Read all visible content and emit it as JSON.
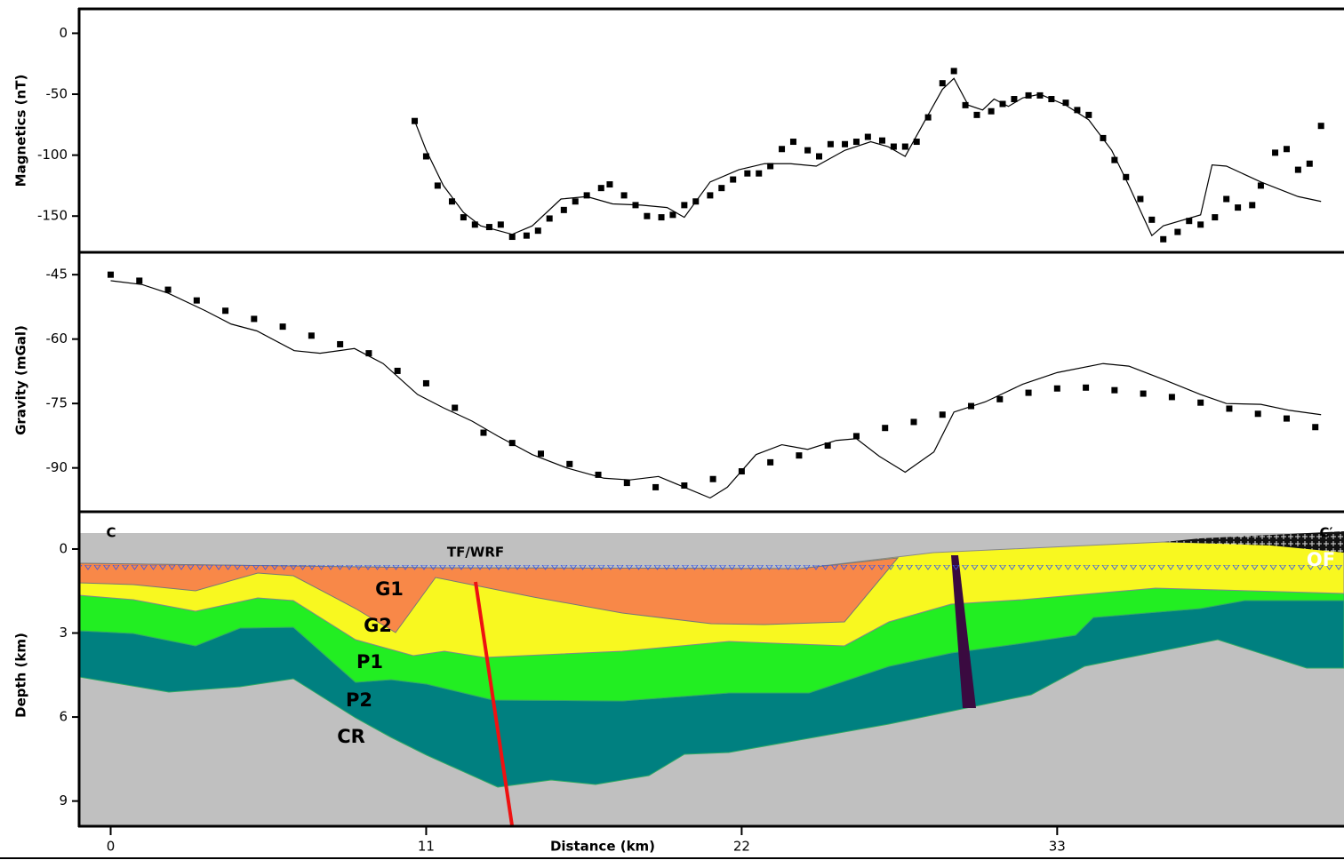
{
  "chart_data": [
    {
      "type": "line",
      "ylabel": "Magnetics (nT)",
      "xlim": [
        -1.1,
        43
      ],
      "ylim": [
        -179,
        20
      ],
      "yticks": [
        0,
        -50,
        -100,
        -150
      ],
      "series": [
        {
          "style": "markers",
          "color": "#000000",
          "x": [
            10.6,
            11.0,
            11.4,
            11.9,
            12.3,
            12.7,
            13.2,
            13.6,
            14.0,
            14.5,
            14.9,
            15.3,
            15.8,
            16.2,
            16.6,
            17.1,
            17.4,
            17.9,
            18.3,
            18.7,
            19.2,
            19.6,
            20.0,
            20.4,
            20.9,
            21.3,
            21.7,
            22.2,
            22.6,
            23.0,
            23.4,
            23.8,
            24.3,
            24.7,
            25.1,
            25.6,
            26.0,
            26.4,
            26.9,
            27.3,
            27.7,
            28.1,
            28.5,
            29.0,
            29.4,
            29.8,
            30.2,
            30.7,
            31.1,
            31.5,
            32.0,
            32.4,
            32.8,
            33.3,
            33.7,
            34.1,
            34.6,
            35.0,
            35.4,
            35.9,
            36.3,
            36.7,
            37.2,
            37.6,
            38.0,
            38.5,
            38.9,
            39.3,
            39.8,
            40.1,
            40.6,
            41.0,
            41.4,
            41.8,
            42.2
          ],
          "values": [
            -72,
            -101,
            -125,
            -138,
            -151,
            -157,
            -159,
            -157,
            -167,
            -166,
            -162,
            -152,
            -145,
            -138,
            -133,
            -127,
            -124,
            -133,
            -141,
            -150,
            -151,
            -149,
            -141,
            -138,
            -133,
            -127,
            -120,
            -115,
            -115,
            -109,
            -95,
            -89,
            -96,
            -101,
            -91,
            -91,
            -89,
            -85,
            -88,
            -93,
            -93,
            -89,
            -69,
            -41,
            -31,
            -59,
            -67,
            -64,
            -58,
            -54,
            -51,
            -51,
            -54,
            -57,
            -63,
            -67,
            -86,
            -104,
            -118,
            -136,
            -153,
            -169,
            -163,
            -154,
            -157,
            -151,
            -136,
            -143,
            -141,
            -125,
            -98,
            -95,
            -112,
            -107,
            -76
          ]
        },
        {
          "style": "line",
          "color": "#000000",
          "x": [
            10.6,
            11.0,
            11.6,
            12.3,
            12.9,
            14.0,
            14.7,
            15.7,
            16.6,
            17.5,
            18.5,
            19.4,
            20.0,
            20.9,
            21.9,
            22.8,
            23.7,
            24.6,
            25.6,
            26.5,
            27.1,
            27.7,
            28.5,
            29.0,
            29.4,
            29.9,
            30.4,
            30.8,
            31.3,
            31.8,
            32.4,
            33.3,
            34.1,
            34.9,
            35.5,
            36.3,
            36.7,
            38.0,
            38.4,
            38.9,
            40.1,
            41.4,
            42.2
          ],
          "values": [
            -72,
            -96,
            -125,
            -147,
            -158,
            -165,
            -158,
            -136,
            -134,
            -140,
            -141,
            -143,
            -151,
            -122,
            -112,
            -107,
            -107,
            -109,
            -96,
            -89,
            -93,
            -101,
            -67,
            -46,
            -37,
            -59,
            -63,
            -54,
            -60,
            -53,
            -50,
            -59,
            -71,
            -96,
            -125,
            -166,
            -158,
            -149,
            -108,
            -109,
            -122,
            -134,
            -138
          ]
        }
      ]
    },
    {
      "type": "line",
      "ylabel": "Gravity (mGal)",
      "xlim": [
        -1.1,
        43
      ],
      "ylim": [
        -100,
        -40
      ],
      "yticks": [
        -45,
        -60,
        -75,
        -90
      ],
      "series": [
        {
          "style": "markers",
          "color": "#000000",
          "x": [
            0,
            1,
            2,
            3,
            4,
            5,
            6,
            7,
            8,
            9,
            10,
            11,
            12,
            13,
            14,
            15,
            16,
            17,
            18,
            19,
            20,
            21,
            22,
            23,
            24,
            25,
            26,
            27,
            28,
            29,
            30,
            31,
            32,
            33,
            34,
            35,
            36,
            37,
            38,
            39,
            40,
            41,
            42
          ],
          "values": [
            -45,
            -46.4,
            -48.5,
            -51,
            -53.4,
            -55.3,
            -57.1,
            -59.2,
            -61.2,
            -63.3,
            -67.4,
            -70.3,
            -76,
            -81.8,
            -84.2,
            -86.7,
            -89.1,
            -91.6,
            -93.5,
            -94.5,
            -94.1,
            -92.6,
            -90.8,
            -88.7,
            -87.1,
            -84.8,
            -82.6,
            -80.7,
            -79.3,
            -77.6,
            -75.6,
            -74,
            -72.5,
            -71.5,
            -71.3,
            -71.9,
            -72.7,
            -73.5,
            -74.8,
            -76.2,
            -77.4,
            -78.5,
            -80.5
          ]
        },
        {
          "style": "line",
          "color": "#000000",
          "x": [
            0,
            1.1,
            2,
            3.3,
            4.2,
            5.1,
            6.4,
            7.3,
            8.5,
            9.5,
            10.7,
            11.6,
            12.6,
            13.5,
            14.7,
            15.9,
            17.2,
            18.1,
            19.1,
            20,
            20.9,
            21.5,
            22.5,
            23.4,
            24.3,
            25.3,
            26,
            26.8,
            27.7,
            28.7,
            29.4,
            30.5,
            31.8,
            33,
            34.6,
            35.5,
            36.7,
            38,
            38.9,
            40.1,
            41.1,
            42.2
          ],
          "values": [
            -46.4,
            -47.3,
            -49.3,
            -53.4,
            -56.5,
            -58.1,
            -62.7,
            -63.3,
            -62.2,
            -65.7,
            -72.9,
            -76,
            -79.1,
            -82.6,
            -86.9,
            -90,
            -92.4,
            -92.8,
            -92,
            -94.5,
            -97,
            -94.5,
            -86.9,
            -84.6,
            -85.7,
            -83.6,
            -83.2,
            -87.3,
            -91,
            -86.3,
            -77,
            -74.6,
            -70.5,
            -67.8,
            -65.7,
            -66.3,
            -69.4,
            -72.9,
            -75,
            -75.2,
            -76.6,
            -77.6
          ]
        }
      ]
    },
    {
      "type": "section",
      "ylabel": "Depth (km)",
      "xlabel": "Distance (km)",
      "xlim": [
        -1.1,
        43
      ],
      "ylim": [
        9.9,
        -1.3
      ],
      "xticks": [
        0,
        11,
        22,
        33
      ],
      "yticks": [
        0,
        3,
        6,
        9
      ],
      "labels": {
        "start": "C",
        "end": "C′",
        "fault": "TF/WRF",
        "g1": "G1",
        "g2": "G2",
        "p1": "P1",
        "p2": "P2",
        "cr": "CR",
        "of": "OF"
      }
    }
  ]
}
